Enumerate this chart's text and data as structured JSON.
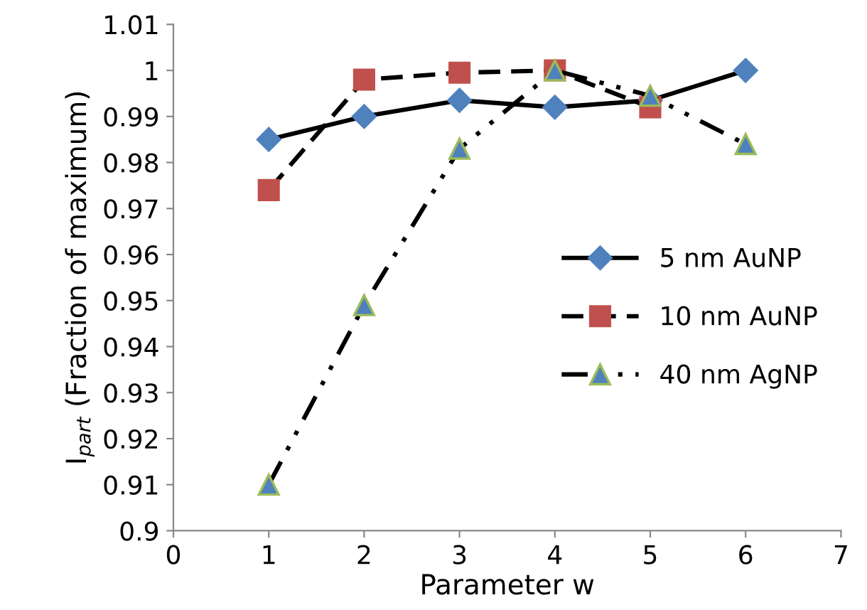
{
  "chart_data": {
    "type": "line",
    "xlabel": "Parameter w",
    "ylabel": "I$_{part}$ (Fraction of maximum)",
    "xlim": [
      0,
      7
    ],
    "xticks": [
      0,
      1,
      2,
      3,
      4,
      5,
      6,
      7
    ],
    "ylim": [
      0.9,
      1.01
    ],
    "yticks": [
      {
        "value": 0.9,
        "label": "0.9"
      },
      0.91,
      0.92,
      0.93,
      0.94,
      0.95,
      0.96,
      0.97,
      0.98,
      0.99,
      {
        "value": 1,
        "label": "1"
      },
      1.01
    ],
    "grid": false,
    "legend": "right",
    "series": [
      {
        "name": "5 nm AuNP",
        "color": "#4f81bd",
        "marker": "diamond",
        "line_style": "solid",
        "x": [
          1,
          2,
          3,
          4,
          5,
          6
        ],
        "values": [
          0.985,
          0.99,
          0.9935,
          0.992,
          0.9935,
          1.0
        ]
      },
      {
        "name": "10 nm AuNP",
        "color": "#c0504d",
        "marker": "square",
        "line_style": "dashed",
        "x": [
          1,
          2,
          3,
          4,
          5
        ],
        "values": [
          0.974,
          0.998,
          0.9995,
          1.0,
          0.992
        ]
      },
      {
        "name": "40 nm AgNP",
        "color": "#4f81bd",
        "marker": "triangle",
        "line_style": "dashdot",
        "x": [
          1,
          2,
          3,
          4,
          5,
          6
        ],
        "values": [
          0.91,
          0.949,
          0.983,
          1.0,
          0.9945,
          0.984
        ]
      }
    ]
  }
}
